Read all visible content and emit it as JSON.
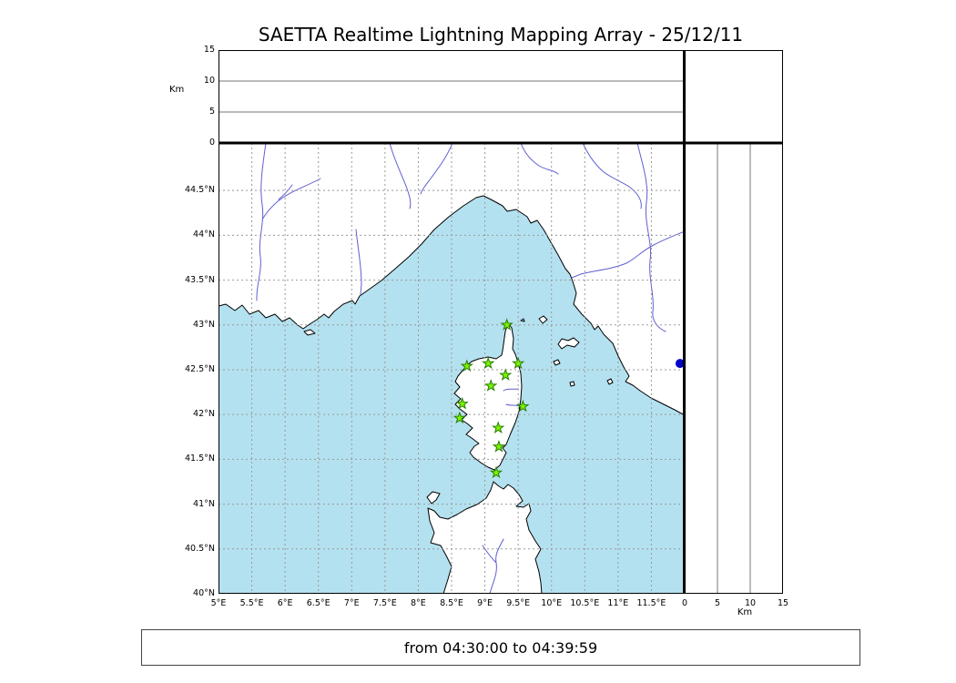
{
  "title": "SAETTA Realtime Lightning Mapping Array - 25/12/11",
  "footer": {
    "time_range": "from 04:30:00 to 04:39:59"
  },
  "colors": {
    "sea": "#b4e1ef",
    "land": "#ffffff",
    "coast": "#000000",
    "river": "#5f5fd3",
    "grid": "#999999",
    "hairline": "#777777",
    "station": "#7df200",
    "station_edge": "#267f00",
    "event": "#0000cd",
    "frame": "#000000"
  },
  "chart_data": {
    "type": "scatter",
    "title": "SAETTA Realtime Lightning Mapping Array - 25/12/11",
    "time_range": "from 04:30:00 to 04:39:59",
    "map_panel": {
      "description": "Geographic map of western Mediterranean (S. France, Liguria/Tuscany coast, Corsica, N. Sardinia) with SAETTA station markers",
      "x_axis": {
        "unit": "°E",
        "range": [
          5,
          12
        ],
        "tick_values": [
          5,
          5.5,
          6,
          6.5,
          7,
          7.5,
          8,
          8.5,
          9,
          9.5,
          10,
          10.5,
          11,
          11.5
        ],
        "tick_labels": [
          "5°E",
          "5.5°E",
          "6°E",
          "6.5°E",
          "7°E",
          "7.5°E",
          "8°E",
          "8.5°E",
          "9°E",
          "9.5°E",
          "10°E",
          "10.5°E",
          "11°E",
          "11.5°E"
        ]
      },
      "y_axis": {
        "unit": "°N",
        "range": [
          40,
          45.03
        ],
        "tick_values": [
          40,
          40.5,
          41,
          41.5,
          42,
          42.5,
          43,
          43.5,
          44,
          44.5
        ],
        "tick_labels": [
          "40°N",
          "40.5°N",
          "41°N",
          "41.5°N",
          "42°N",
          "42.5°N",
          "43°N",
          "43.5°N",
          "44°N",
          "44.5°N"
        ]
      },
      "grid": "dashed"
    },
    "altitude_panel_top": {
      "axis_label": "Km",
      "range": [
        0,
        15
      ],
      "tick_values": [
        0,
        5,
        10,
        15
      ],
      "tick_labels": [
        "0",
        "5",
        "10",
        "15"
      ],
      "points": []
    },
    "altitude_panel_right": {
      "axis_label": "Km",
      "range": [
        0,
        15
      ],
      "tick_values": [
        0,
        5,
        10,
        15
      ],
      "tick_labels": [
        "0",
        "5",
        "10",
        "15"
      ],
      "points": []
    },
    "stations": [
      {
        "lon": 9.33,
        "lat": 43.0
      },
      {
        "lon": 8.73,
        "lat": 42.54
      },
      {
        "lon": 9.05,
        "lat": 42.57
      },
      {
        "lon": 9.5,
        "lat": 42.57
      },
      {
        "lon": 9.31,
        "lat": 42.44
      },
      {
        "lon": 9.09,
        "lat": 42.32
      },
      {
        "lon": 8.66,
        "lat": 42.12
      },
      {
        "lon": 9.57,
        "lat": 42.09
      },
      {
        "lon": 8.62,
        "lat": 41.96
      },
      {
        "lon": 9.2,
        "lat": 41.85
      },
      {
        "lon": 9.21,
        "lat": 41.64
      },
      {
        "lon": 9.17,
        "lat": 41.35
      }
    ],
    "events": [
      {
        "lon": 11.93,
        "lat": 42.57
      }
    ]
  }
}
